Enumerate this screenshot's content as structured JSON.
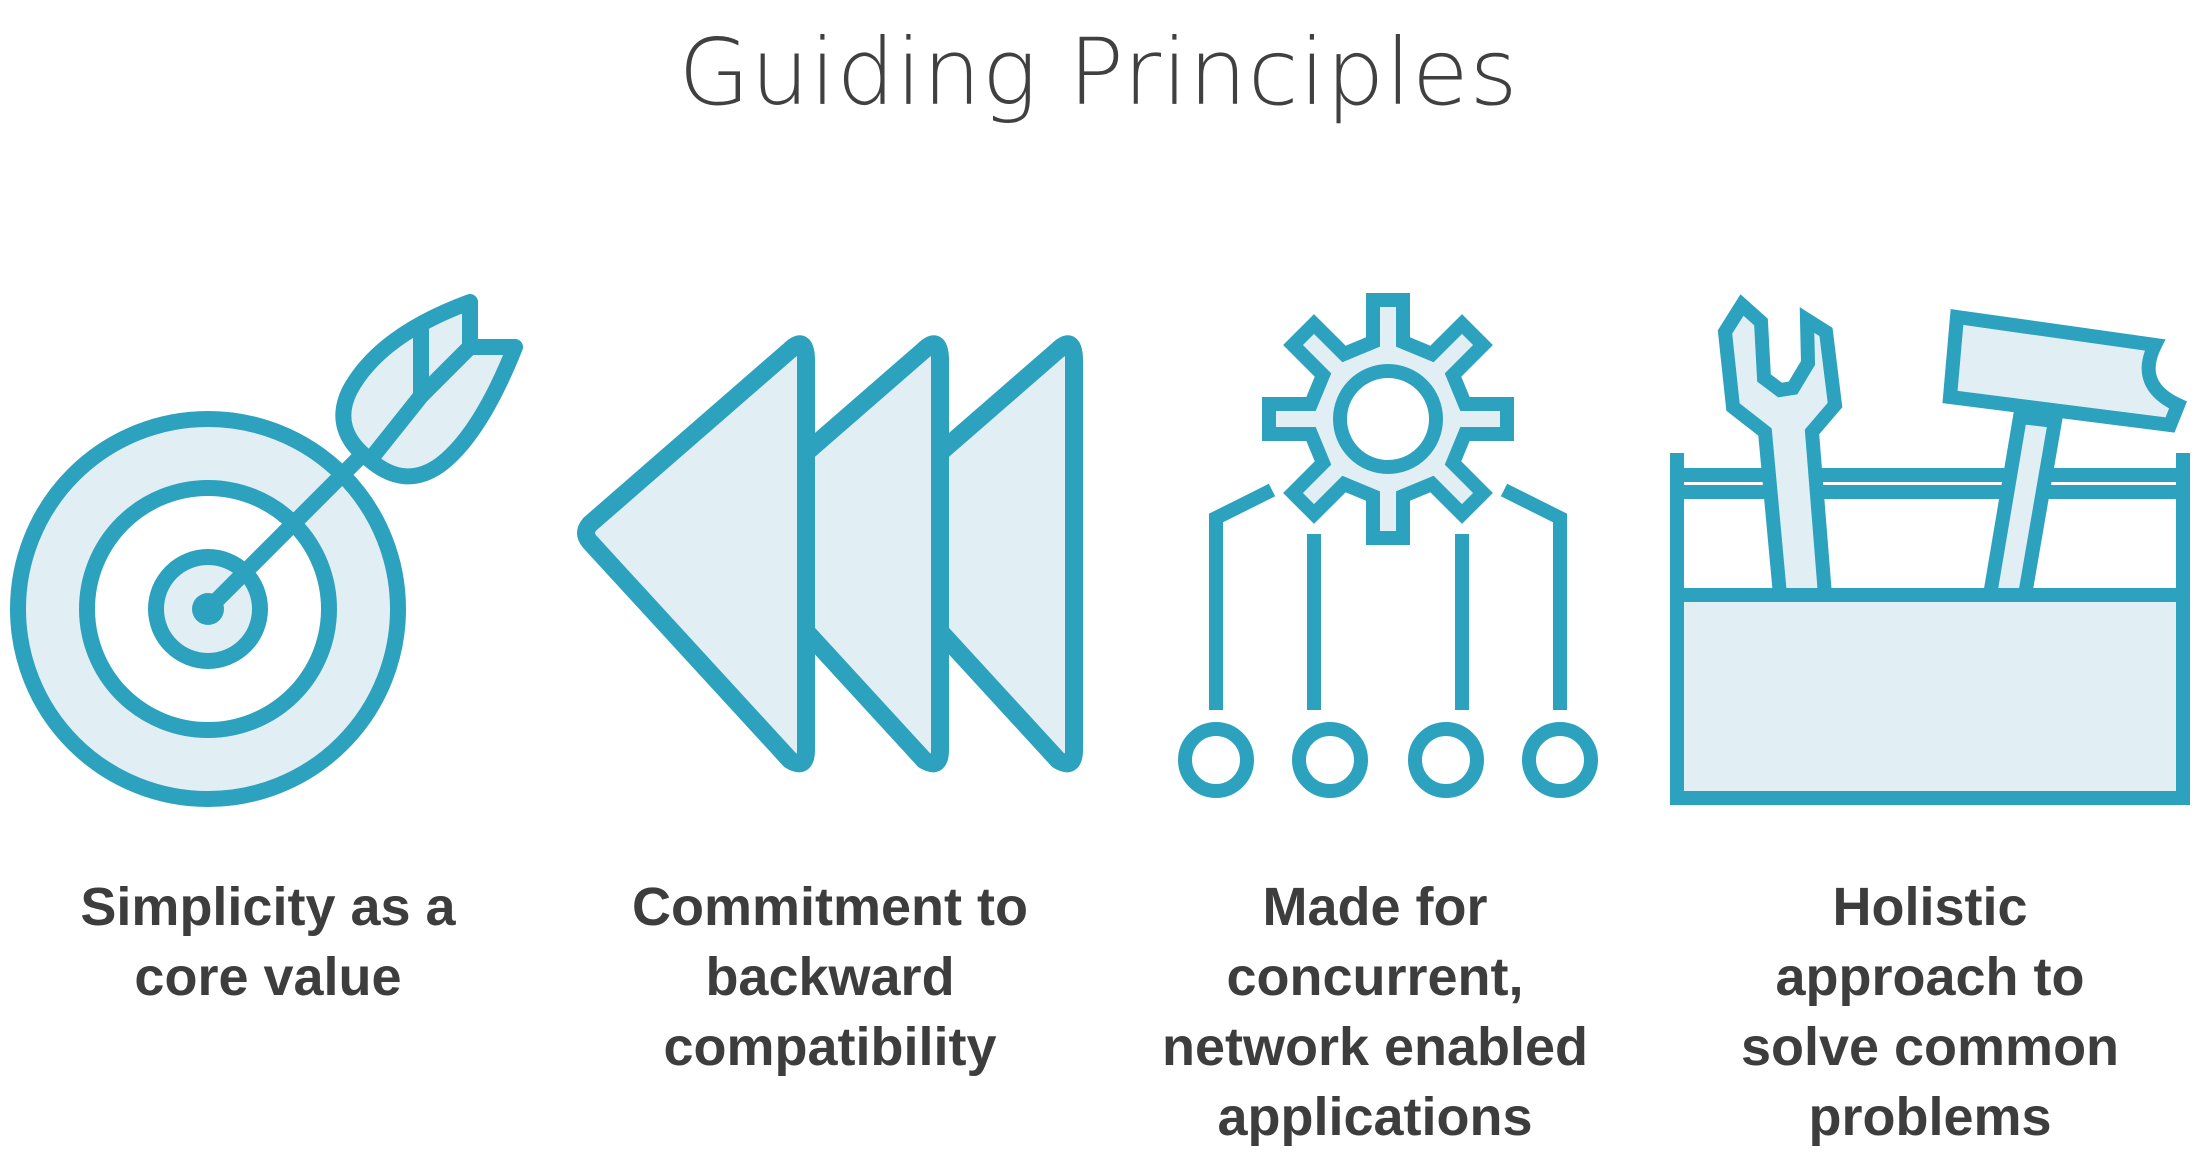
{
  "title": "Guiding Principles",
  "colors": {
    "stroke": "#2da2be",
    "fill": "#e1eff5",
    "text": "#3d3d3d"
  },
  "principles": [
    {
      "icon": "target-arrow-icon",
      "lines": [
        "Simplicity as a",
        "core value"
      ]
    },
    {
      "icon": "rewind-arrows-icon",
      "lines": [
        "Commitment to",
        "backward",
        "compatibility"
      ]
    },
    {
      "icon": "gear-network-icon",
      "lines": [
        "Made for",
        "concurrent,",
        "network enabled",
        "applications"
      ]
    },
    {
      "icon": "toolbox-icon",
      "lines": [
        "Holistic",
        "approach to",
        "solve common",
        "problems"
      ]
    }
  ]
}
